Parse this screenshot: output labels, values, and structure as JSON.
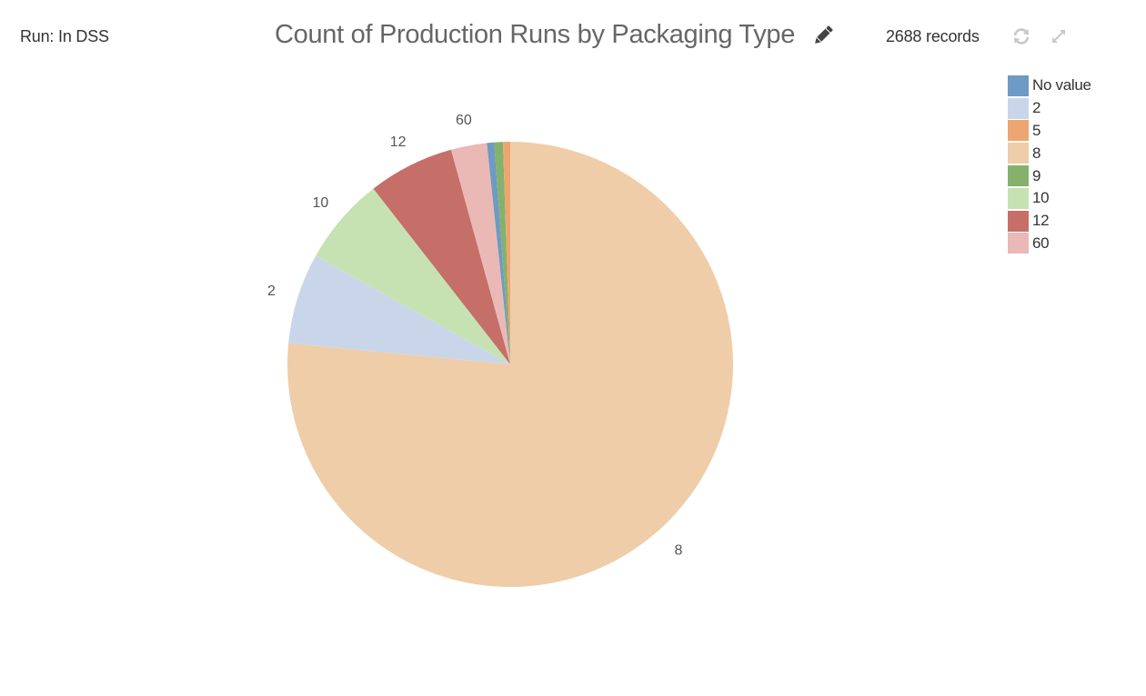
{
  "header": {
    "run_label": "Run: In DSS",
    "title": "Count of Production Runs by Packaging Type",
    "records": "2688 records",
    "icons": {
      "edit": "pencil-icon",
      "refresh": "refresh-icon",
      "expand": "expand-icon"
    }
  },
  "legend": {
    "items": [
      {
        "label": "No value",
        "color": "#6f9ac3"
      },
      {
        "label": "2",
        "color": "#c9d6ea"
      },
      {
        "label": "5",
        "color": "#eda571"
      },
      {
        "label": "8",
        "color": "#efcda8"
      },
      {
        "label": "9",
        "color": "#84b26c"
      },
      {
        "label": "10",
        "color": "#c6e2b3"
      },
      {
        "label": "12",
        "color": "#c56f68"
      },
      {
        "label": "60",
        "color": "#eab9b5"
      }
    ]
  },
  "chart_data": {
    "type": "pie",
    "title": "Count of Production Runs by Packaging Type",
    "total_records": 2688,
    "categories": [
      "8",
      "2",
      "10",
      "12",
      "60",
      "No value",
      "9",
      "5"
    ],
    "values": [
      2057,
      177,
      171,
      168,
      70,
      14,
      17,
      14
    ],
    "colors": [
      "#efcda8",
      "#c9d6ea",
      "#c6e2b3",
      "#c56f68",
      "#eab9b5",
      "#6f9ac3",
      "#84b26c",
      "#eda571"
    ],
    "slice_labels_shown": [
      "8",
      "2",
      "10",
      "12",
      "60"
    ],
    "legend_position": "top-right",
    "legend_order": [
      "No value",
      "2",
      "5",
      "8",
      "9",
      "10",
      "12",
      "60"
    ]
  }
}
